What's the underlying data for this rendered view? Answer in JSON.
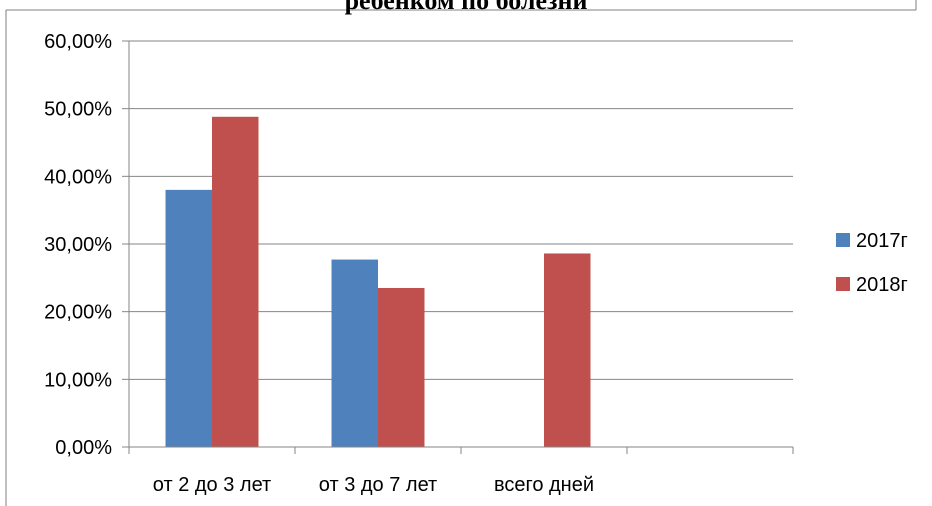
{
  "chart_data": {
    "type": "bar",
    "title": "ребенком по болезни",
    "categories": [
      "от 2 до 3 лет",
      "от 3 до 7 лет",
      "всего дней",
      ""
    ],
    "series": [
      {
        "name": "2017г",
        "color": "#4f81bd",
        "values": [
          38.0,
          27.7,
          null,
          null
        ]
      },
      {
        "name": "2018г",
        "color": "#c0504d",
        "values": [
          48.8,
          23.5,
          28.6,
          null
        ]
      }
    ],
    "y_tick_labels": [
      "0,00%",
      "10,00%",
      "20,00%",
      "30,00%",
      "40,00%",
      "50,00%",
      "60,00%"
    ],
    "ylim": [
      0,
      60
    ],
    "y_step": 10,
    "grid": true,
    "legend_position": "right"
  }
}
